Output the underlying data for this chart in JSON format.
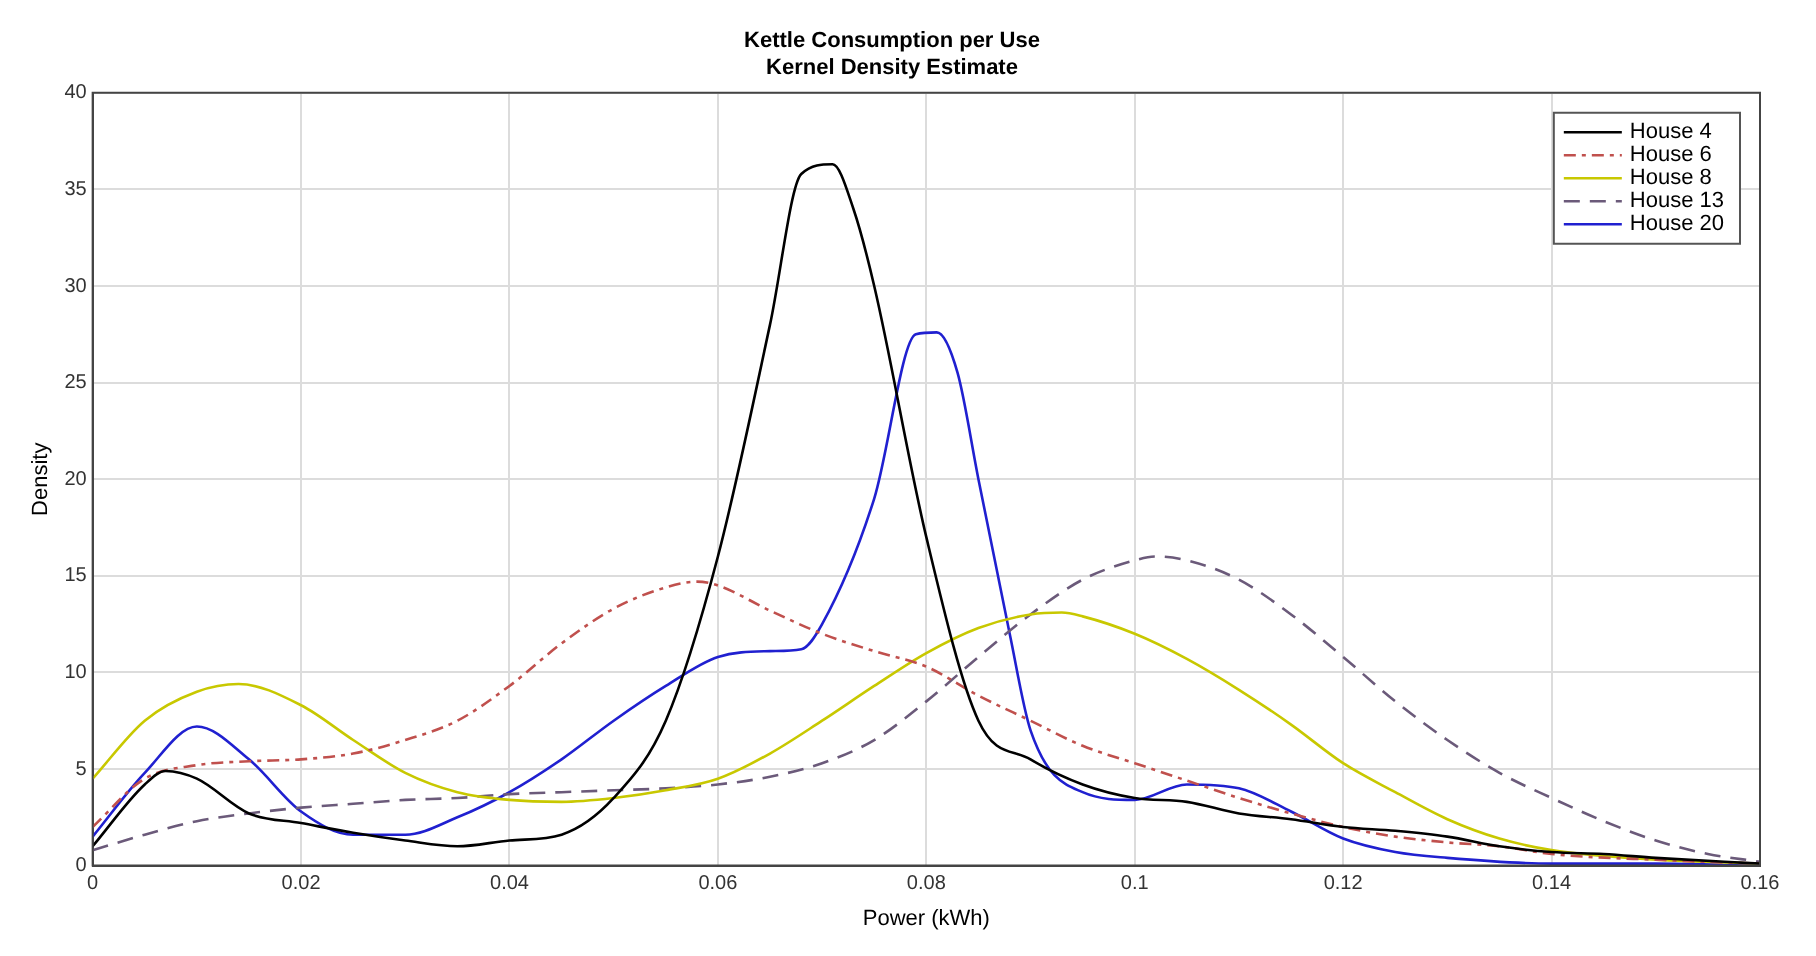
{
  "chart_data": {
    "type": "line",
    "title": "Kettle Consumption per Use\nKernel Density Estimate",
    "xlabel": "Power (kWh)",
    "ylabel": "Density",
    "xlim": [
      0,
      0.16
    ],
    "xticks": [
      0,
      0.02,
      0.04,
      0.06,
      0.08,
      0.1,
      0.12,
      0.14,
      0.16
    ],
    "ylim": [
      0,
      40
    ],
    "yticks": [
      0,
      5,
      10,
      15,
      20,
      25,
      30,
      35,
      40
    ],
    "grid": true,
    "legend": "top right",
    "marker": "none",
    "series": [
      {
        "name": "House 4",
        "color": "#000000",
        "line_style": "solid",
        "x": [
          0,
          0.005,
          0.007,
          0.01,
          0.015,
          0.02,
          0.025,
          0.03,
          0.035,
          0.04,
          0.045,
          0.05,
          0.055,
          0.06,
          0.065,
          0.068,
          0.071,
          0.073,
          0.075,
          0.08,
          0.085,
          0.09,
          0.095,
          0.1,
          0.105,
          0.11,
          0.115,
          0.12,
          0.125,
          0.13,
          0.135,
          0.14,
          0.145,
          0.15,
          0.16
        ],
        "values": [
          1.0,
          4.2,
          4.9,
          4.5,
          2.7,
          2.2,
          1.7,
          1.3,
          1.0,
          1.3,
          1.6,
          3.5,
          7.5,
          16,
          28,
          35.8,
          36.3,
          34,
          30,
          17,
          7.5,
          5.5,
          4.2,
          3.5,
          3.3,
          2.7,
          2.4,
          2.0,
          1.8,
          1.5,
          1.0,
          0.7,
          0.6,
          0.4,
          0.1
        ]
      },
      {
        "name": "House 6",
        "color": "#c0504d",
        "line_style": "dashdot",
        "x": [
          0,
          0.005,
          0.01,
          0.015,
          0.02,
          0.025,
          0.03,
          0.035,
          0.04,
          0.045,
          0.05,
          0.055,
          0.058,
          0.06,
          0.065,
          0.07,
          0.075,
          0.08,
          0.085,
          0.09,
          0.095,
          0.1,
          0.105,
          0.11,
          0.115,
          0.12,
          0.125,
          0.13,
          0.135,
          0.14,
          0.15,
          0.16
        ],
        "values": [
          2.0,
          4.5,
          5.2,
          5.4,
          5.5,
          5.8,
          6.5,
          7.5,
          9.3,
          11.5,
          13.3,
          14.4,
          14.7,
          14.5,
          13.2,
          12,
          11.1,
          10.3,
          8.8,
          7.5,
          6.2,
          5.3,
          4.4,
          3.5,
          2.7,
          2.0,
          1.5,
          1.2,
          1.0,
          0.6,
          0.3,
          0.1
        ]
      },
      {
        "name": "House 8",
        "color": "#c8c800",
        "line_style": "solid",
        "x": [
          0,
          0.005,
          0.01,
          0.014,
          0.02,
          0.025,
          0.03,
          0.035,
          0.04,
          0.045,
          0.05,
          0.055,
          0.06,
          0.065,
          0.07,
          0.075,
          0.08,
          0.085,
          0.09,
          0.093,
          0.095,
          0.1,
          0.105,
          0.11,
          0.115,
          0.12,
          0.125,
          0.13,
          0.135,
          0.14,
          0.145,
          0.15,
          0.16
        ],
        "values": [
          4.5,
          7.5,
          9,
          9.4,
          8.3,
          6.5,
          4.8,
          3.8,
          3.4,
          3.3,
          3.5,
          3.9,
          4.5,
          5.8,
          7.5,
          9.3,
          11,
          12.3,
          13,
          13.1,
          12.9,
          12,
          10.7,
          9.1,
          7.3,
          5.3,
          3.8,
          2.4,
          1.4,
          0.8,
          0.5,
          0.3,
          0.1
        ]
      },
      {
        "name": "House 13",
        "color": "#6b5a7a",
        "line_style": "dashed",
        "x": [
          0,
          0.005,
          0.01,
          0.015,
          0.02,
          0.025,
          0.03,
          0.035,
          0.04,
          0.045,
          0.05,
          0.055,
          0.06,
          0.065,
          0.07,
          0.075,
          0.08,
          0.085,
          0.09,
          0.095,
          0.1,
          0.102,
          0.105,
          0.11,
          0.115,
          0.12,
          0.125,
          0.13,
          0.135,
          0.14,
          0.145,
          0.15,
          0.155,
          0.16
        ],
        "values": [
          0.8,
          1.6,
          2.3,
          2.7,
          3.0,
          3.2,
          3.4,
          3.5,
          3.7,
          3.8,
          3.9,
          4.0,
          4.2,
          4.6,
          5.3,
          6.5,
          8.5,
          10.8,
          13,
          14.8,
          15.8,
          16.0,
          15.8,
          14.8,
          13,
          10.8,
          8.5,
          6.5,
          4.8,
          3.5,
          2.3,
          1.3,
          0.6,
          0.2
        ]
      },
      {
        "name": "House 20",
        "color": "#2020d0",
        "line_style": "solid",
        "x": [
          0,
          0.005,
          0.01,
          0.015,
          0.02,
          0.025,
          0.03,
          0.035,
          0.04,
          0.045,
          0.05,
          0.055,
          0.06,
          0.065,
          0.068,
          0.07,
          0.075,
          0.079,
          0.081,
          0.083,
          0.085,
          0.088,
          0.09,
          0.095,
          0.1,
          0.105,
          0.11,
          0.115,
          0.12,
          0.125,
          0.13,
          0.14,
          0.15,
          0.16
        ],
        "values": [
          1.5,
          4.8,
          7.2,
          5.5,
          2.8,
          1.6,
          1.6,
          2.5,
          3.8,
          5.5,
          7.5,
          9.3,
          10.8,
          11.1,
          11.2,
          12.5,
          19,
          27.5,
          27.6,
          25.5,
          20,
          12,
          7,
          3.8,
          3.4,
          4.2,
          4.0,
          2.8,
          1.4,
          0.7,
          0.4,
          0.1,
          0.1,
          0
        ]
      }
    ]
  }
}
